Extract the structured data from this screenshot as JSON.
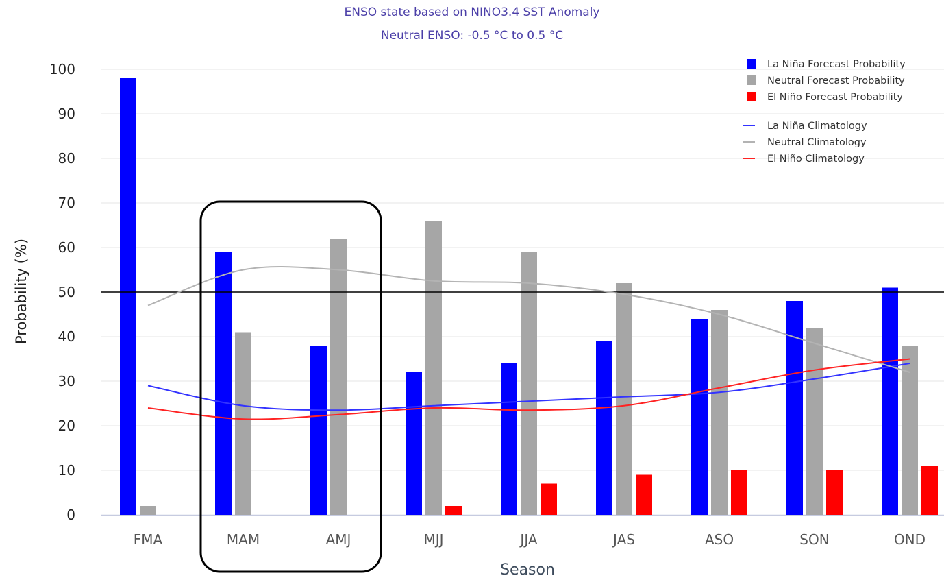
{
  "chart_data": {
    "type": "bar",
    "title": "ENSO state based on NINO3.4 SST Anomaly",
    "subtitle": "Neutral ENSO: -0.5 °C to 0.5 °C",
    "xlabel": "Season",
    "ylabel": "Probability (%)",
    "ylim": [
      0,
      100
    ],
    "yticks": [
      "0",
      "10",
      "20",
      "30",
      "40",
      "50",
      "60",
      "70",
      "80",
      "90",
      "100"
    ],
    "categories": [
      "FMA",
      "MAM",
      "AMJ",
      "MJJ",
      "JJA",
      "JAS",
      "ASO",
      "SON",
      "OND"
    ],
    "series": [
      {
        "name": "La Niña Forecast Probability",
        "kind": "bar",
        "color": "#0000ff",
        "values": [
          98,
          59,
          38,
          32,
          34,
          39,
          44,
          48,
          51
        ]
      },
      {
        "name": "Neutral Forecast Probability",
        "kind": "bar",
        "color": "#a6a6a6",
        "values": [
          2,
          41,
          62,
          66,
          59,
          52,
          46,
          42,
          38
        ]
      },
      {
        "name": "El Niño Forecast Probability",
        "kind": "bar",
        "color": "#ff0000",
        "values": [
          0,
          0,
          0,
          2,
          7,
          9,
          10,
          10,
          11
        ]
      },
      {
        "name": "La Niña Climatology",
        "kind": "line",
        "color": "#3333ff",
        "values": [
          29,
          24.5,
          23.5,
          24.5,
          25.5,
          26.5,
          27.5,
          30.5,
          34
        ]
      },
      {
        "name": "Neutral Climatology",
        "kind": "line",
        "color": "#b3b3b3",
        "values": [
          47,
          55,
          55,
          52.5,
          52,
          49.5,
          45,
          38.5,
          32
        ]
      },
      {
        "name": "El Niño Climatology",
        "kind": "line",
        "color": "#ff2222",
        "values": [
          24,
          21.5,
          22.5,
          24,
          23.5,
          24.5,
          28.5,
          32.5,
          35
        ]
      }
    ],
    "reference_line": {
      "value": 50,
      "color": "#000000"
    },
    "highlight": {
      "categories": [
        "MAM",
        "AMJ"
      ]
    },
    "grid": true,
    "legend": "top-right"
  }
}
